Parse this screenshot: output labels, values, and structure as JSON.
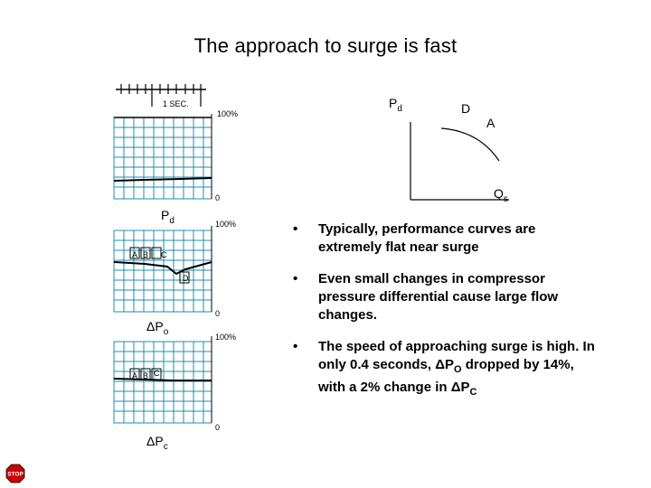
{
  "title": "The approach to surge is fast",
  "strip_chart": {
    "time_label": "1 SEC.",
    "panels": [
      {
        "name": "Pd",
        "label_main": "P",
        "label_sub": "d",
        "top_label": "100%",
        "bottom_label": "0"
      },
      {
        "name": "dPo",
        "label_main": "ΔP",
        "label_sub": "o",
        "top_label": "100%",
        "bottom_label": "0",
        "markers": [
          "A",
          "B",
          "C"
        ],
        "marker_d": "D"
      },
      {
        "name": "dPc",
        "label_main": "ΔP",
        "label_sub": "c",
        "top_label": "100%",
        "bottom_label": "0",
        "markers": [
          "A",
          "B",
          "C"
        ]
      }
    ]
  },
  "performance_curve": {
    "y_label_main": "P",
    "y_label_sub": "d",
    "x_label_main": "Q",
    "x_label_sub": "s",
    "point_d": "D",
    "point_a": "A"
  },
  "bullets": [
    {
      "text": "Typically, performance curves are extremely flat near surge"
    },
    {
      "text": "Even small changes in compressor pressure differential cause large flow changes."
    },
    {
      "pre": "The speed of approaching surge is high.  In only 0.4 seconds, ",
      "sym1": "ΔP",
      "sub1": "O",
      "mid": " dropped by 14%, with a  2% change in ",
      "sym2": "ΔP",
      "sub2": "C"
    }
  ],
  "bullet_char": "•",
  "stop_sign": {
    "text": "STOP",
    "color": "#cc0000"
  }
}
